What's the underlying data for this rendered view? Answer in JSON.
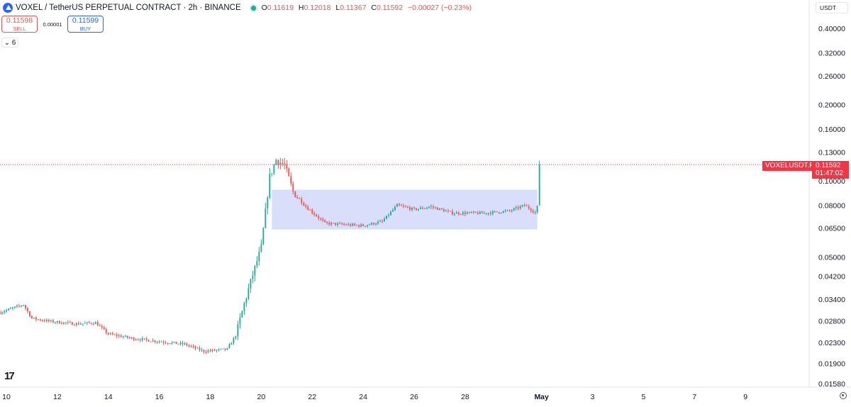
{
  "header": {
    "title": "VOXEL / TetherUS PERPETUAL CONTRACT · 2h · BINANCE",
    "ohlc": {
      "o_label": "O",
      "o": "0.11619",
      "h_label": "H",
      "h": "0.12018",
      "l_label": "L",
      "l": "0.11367",
      "c_label": "C",
      "c": "0.11592",
      "change": "−0.00027 (−0.23%)"
    },
    "currency": "USDT"
  },
  "trade": {
    "sell_price": "0.11598",
    "sell_label": "SELL",
    "spread": "0.00001",
    "buy_price": "0.11599",
    "buy_label": "BUY"
  },
  "indicator_toggle": "6",
  "price_tags": {
    "symbol": "VOXELUSDT.P",
    "price": "0.11592",
    "countdown": "01:47:02"
  },
  "logo_text": "17",
  "colors": {
    "up": "#26a69a",
    "down": "#ef5350",
    "range_box": "#d5dbfb",
    "price_line": "#f23645",
    "tag_bg": "#f23645"
  },
  "icons": [
    "tradingview-logo-icon",
    "settings-gear-icon",
    "chevron-down-icon",
    "market-open-dot-icon"
  ],
  "chart_data": {
    "type": "candlestick",
    "scale": "log",
    "grid": false,
    "y_ticks": [
      0.4,
      0.32,
      0.26,
      0.2,
      0.16,
      0.13,
      0.1,
      0.08,
      0.065,
      0.05,
      0.042,
      0.034,
      0.028,
      0.023,
      0.019,
      0.0158
    ],
    "y_tick_labels": [
      "0.40000",
      "0.32000",
      "0.26000",
      "0.20000",
      "0.16000",
      "0.13000",
      "0.10000",
      "0.08000",
      "0.06500",
      "0.05000",
      "0.04200",
      "0.03400",
      "0.02800",
      "0.02300",
      "0.01900",
      "0.01580"
    ],
    "x_tick_labels": [
      "10",
      "12",
      "14",
      "16",
      "18",
      "20",
      "22",
      "24",
      "26",
      "28",
      "May",
      "3",
      "5",
      "7",
      "9"
    ],
    "x_ticks": [
      "Apr 10",
      "Apr 12",
      "Apr 14",
      "Apr 16",
      "Apr 18",
      "Apr 20",
      "Apr 22",
      "Apr 24",
      "Apr 26",
      "Apr 28",
      "May 1",
      "May 3",
      "May 5",
      "May 7",
      "May 9"
    ],
    "x_range": [
      "Apr 9 18:00",
      "May 11 12:00"
    ],
    "range_box": {
      "start": "Apr 20 10:00",
      "end": "Apr 30 20:00",
      "low": 0.0642,
      "high": 0.0922
    },
    "last_price": 0.11592,
    "candle_interval": "2h",
    "first_candle": "Apr 9 18:00",
    "anchors": [
      [
        "Apr 9 18:00",
        0.0302
      ],
      [
        "Apr 10 16:00",
        0.0324
      ],
      [
        "Apr 11 0:00",
        0.0286
      ],
      [
        "Apr 11 18:00",
        0.0278
      ],
      [
        "Apr 12 18:00",
        0.0272
      ],
      [
        "Apr 13 12:00",
        0.0275
      ],
      [
        "Apr 14 0:00",
        0.0248
      ],
      [
        "Apr 15 0:00",
        0.0238
      ],
      [
        "Apr 16 0:00",
        0.0232
      ],
      [
        "Apr 17 0:00",
        0.0226
      ],
      [
        "Apr 17 18:00",
        0.0212
      ],
      [
        "Apr 18 16:00",
        0.0216
      ],
      [
        "Apr 19 0:00",
        0.0245
      ],
      [
        "Apr 19 8:00",
        0.0326
      ],
      [
        "Apr 19 16:00",
        0.0425
      ],
      [
        "Apr 20 0:00",
        0.0545
      ],
      [
        "Apr 20 8:00",
        0.104
      ],
      [
        "Apr 20 14:00",
        0.121
      ],
      [
        "Apr 20 22:00",
        0.115
      ],
      [
        "Apr 21 6:00",
        0.0905
      ],
      [
        "Apr 21 18:00",
        0.079
      ],
      [
        "Apr 22 12:00",
        0.068
      ],
      [
        "Apr 23 8:00",
        0.067
      ],
      [
        "Apr 24 0:00",
        0.0665
      ],
      [
        "Apr 24 18:00",
        0.069
      ],
      [
        "Apr 25 8:00",
        0.08
      ],
      [
        "Apr 26 0:00",
        0.077
      ],
      [
        "Apr 26 16:00",
        0.079
      ],
      [
        "Apr 27 12:00",
        0.0745
      ],
      [
        "Apr 28 18:00",
        0.0745
      ],
      [
        "Apr 29 18:00",
        0.076
      ],
      [
        "Apr 30 8:00",
        0.08
      ],
      [
        "Apr 30 18:00",
        0.075
      ],
      [
        "Apr 30 20:00",
        0.079
      ]
    ],
    "last_candle": {
      "o": 0.11619,
      "h": 0.12018,
      "l": 0.11367,
      "c": 0.11592
    }
  }
}
